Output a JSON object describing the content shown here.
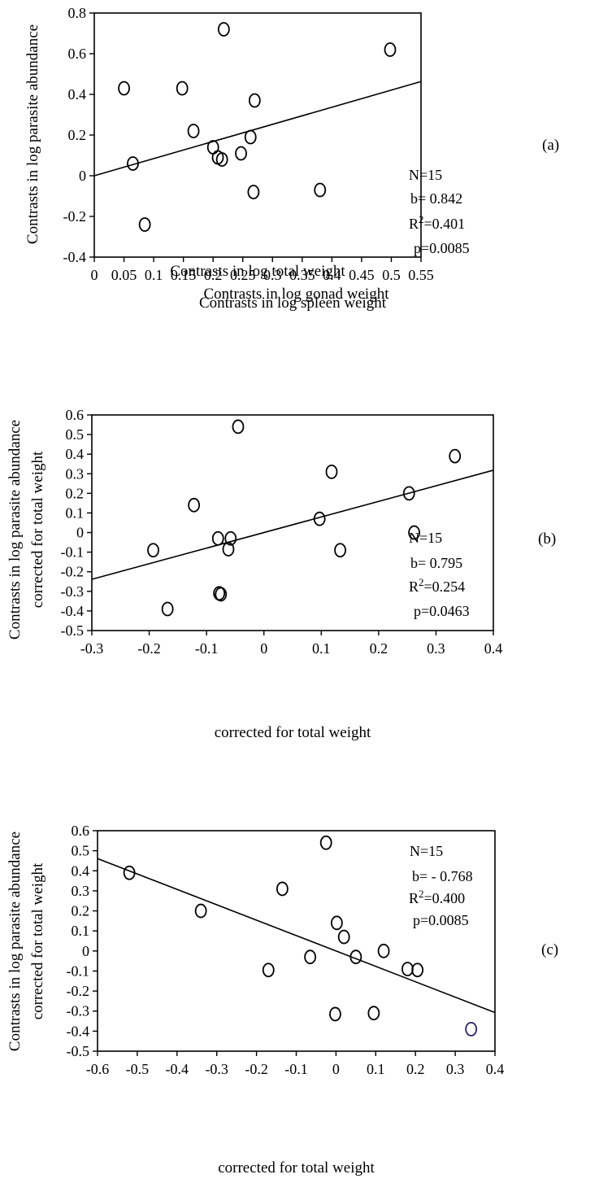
{
  "figure": {
    "panels": [
      {
        "letter": "(a)",
        "stats": [
          "N=15",
          "b= 0.842",
          "R",
          "2",
          "=0.401",
          "p=0.0085"
        ]
      },
      {
        "letter": "(b)",
        "stats": [
          "N=15",
          "b= 0.795",
          "R",
          "2",
          "=0.254",
          "p=0.0463"
        ]
      },
      {
        "letter": "(c)",
        "stats": [
          "N=15",
          "b= - 0.768",
          "R",
          "2",
          "=0.400",
          "p=0.0085"
        ]
      }
    ]
  },
  "chart_data": [
    {
      "type": "scatter",
      "title": "",
      "xlabel": [
        "Contrasts in log total weight"
      ],
      "ylabel": [
        "Contrasts in log parasite abundance"
      ],
      "xlim": [
        0,
        0.55
      ],
      "ylim": [
        -0.4,
        0.8
      ],
      "xticks": [
        0,
        0.05,
        0.1,
        0.15,
        0.2,
        0.25,
        0.3,
        0.35,
        0.4,
        0.45,
        0.5,
        0.55
      ],
      "yticks": [
        -0.4,
        -0.2,
        0,
        0.2,
        0.4,
        0.6,
        0.8
      ],
      "xtick_labels": [
        "0",
        "0.05",
        "0.1",
        "0.15",
        "0.2",
        "0.25",
        "0.3",
        "0.35",
        "0.4",
        "0.45",
        "0.5",
        "0.55"
      ],
      "ytick_labels": [
        "-0.4",
        "-0.2",
        "0",
        "0.2",
        "0.4",
        "0.6",
        "0.8"
      ],
      "grid": false,
      "fit_line": {
        "slope": 0.842,
        "intercept": 0.0
      },
      "points": [
        {
          "x": 0.05,
          "y": 0.43
        },
        {
          "x": 0.065,
          "y": 0.06
        },
        {
          "x": 0.085,
          "y": -0.24
        },
        {
          "x": 0.148,
          "y": 0.43
        },
        {
          "x": 0.167,
          "y": 0.22
        },
        {
          "x": 0.2,
          "y": 0.14
        },
        {
          "x": 0.208,
          "y": 0.09
        },
        {
          "x": 0.215,
          "y": 0.08
        },
        {
          "x": 0.218,
          "y": 0.72
        },
        {
          "x": 0.247,
          "y": 0.11
        },
        {
          "x": 0.263,
          "y": 0.19
        },
        {
          "x": 0.268,
          "y": -0.08
        },
        {
          "x": 0.27,
          "y": 0.37
        },
        {
          "x": 0.38,
          "y": -0.07
        },
        {
          "x": 0.498,
          "y": 0.62
        }
      ],
      "point_color": "#000000"
    },
    {
      "type": "scatter",
      "title": "",
      "xlabel": [
        "Contrasts in log spleen weight",
        "corrected for total weight"
      ],
      "ylabel": [
        "Contrasts in log parasite abundance",
        "corrected for total weight"
      ],
      "xlim": [
        -0.3,
        0.4
      ],
      "ylim": [
        -0.5,
        0.6
      ],
      "xticks": [
        -0.3,
        -0.2,
        -0.1,
        0,
        0.1,
        0.2,
        0.3,
        0.4
      ],
      "yticks": [
        -0.5,
        -0.4,
        -0.3,
        -0.2,
        -0.1,
        0,
        0.1,
        0.2,
        0.3,
        0.4,
        0.5,
        0.6
      ],
      "xtick_labels": [
        "-0.3",
        "-0.2",
        "-0.1",
        "0",
        "0.1",
        "0.2",
        "0.3",
        "0.4"
      ],
      "ytick_labels": [
        "-0.5",
        "-0.4",
        "-0.3",
        "-0.2",
        "-0.1",
        "0",
        "0.1",
        "0.2",
        "0.3",
        "0.4",
        "0.5",
        "0.6"
      ],
      "grid": false,
      "fit_line": {
        "slope": 0.795,
        "intercept": 0.0
      },
      "points": [
        {
          "x": -0.193,
          "y": -0.09
        },
        {
          "x": -0.168,
          "y": -0.39
        },
        {
          "x": -0.122,
          "y": 0.14
        },
        {
          "x": -0.08,
          "y": -0.03
        },
        {
          "x": -0.078,
          "y": -0.31
        },
        {
          "x": -0.075,
          "y": -0.315
        },
        {
          "x": -0.062,
          "y": -0.085
        },
        {
          "x": -0.058,
          "y": -0.03
        },
        {
          "x": -0.045,
          "y": 0.54
        },
        {
          "x": 0.097,
          "y": 0.07
        },
        {
          "x": 0.118,
          "y": 0.31
        },
        {
          "x": 0.133,
          "y": -0.09
        },
        {
          "x": 0.253,
          "y": 0.2
        },
        {
          "x": 0.262,
          "y": 0.0
        },
        {
          "x": 0.333,
          "y": 0.39
        }
      ],
      "point_color": "#000000"
    },
    {
      "type": "scatter",
      "title": "",
      "xlabel": [
        "Contrasts in log gonad weight",
        "corrected for total weight"
      ],
      "ylabel": [
        "Contrasts in log parasite abundance",
        "corrected for total weight"
      ],
      "xlim": [
        -0.6,
        0.4
      ],
      "ylim": [
        -0.5,
        0.6
      ],
      "xticks": [
        -0.6,
        -0.5,
        -0.4,
        -0.3,
        -0.2,
        -0.1,
        0,
        0.1,
        0.2,
        0.3,
        0.4
      ],
      "yticks": [
        -0.5,
        -0.4,
        -0.3,
        -0.2,
        -0.1,
        0,
        0.1,
        0.2,
        0.3,
        0.4,
        0.5,
        0.6
      ],
      "xtick_labels": [
        "-0.6",
        "-0.5",
        "-0.4",
        "-0.3",
        "-0.2",
        "-0.1",
        "0",
        "0.1",
        "0.2",
        "0.3",
        "0.4"
      ],
      "ytick_labels": [
        "-0.5",
        "-0.4",
        "-0.3",
        "-0.2",
        "-0.1",
        "0",
        "0.1",
        "0.2",
        "0.3",
        "0.4",
        "0.5",
        "0.6"
      ],
      "grid": false,
      "fit_line": {
        "slope": -0.768,
        "intercept": 0.0
      },
      "points": [
        {
          "x": -0.52,
          "y": 0.39
        },
        {
          "x": -0.34,
          "y": 0.2
        },
        {
          "x": -0.17,
          "y": -0.095
        },
        {
          "x": -0.135,
          "y": 0.31
        },
        {
          "x": -0.065,
          "y": -0.03
        },
        {
          "x": -0.025,
          "y": 0.54
        },
        {
          "x": -0.002,
          "y": -0.315
        },
        {
          "x": 0.002,
          "y": 0.14
        },
        {
          "x": 0.02,
          "y": 0.07
        },
        {
          "x": 0.05,
          "y": -0.03
        },
        {
          "x": 0.095,
          "y": -0.31
        },
        {
          "x": 0.12,
          "y": 0.0
        },
        {
          "x": 0.18,
          "y": -0.09
        },
        {
          "x": 0.205,
          "y": -0.095
        },
        {
          "x": 0.34,
          "y": -0.39
        }
      ],
      "point_color": "#000000",
      "highlight_point": {
        "index": 14,
        "color": "#2a1f6e"
      }
    }
  ]
}
